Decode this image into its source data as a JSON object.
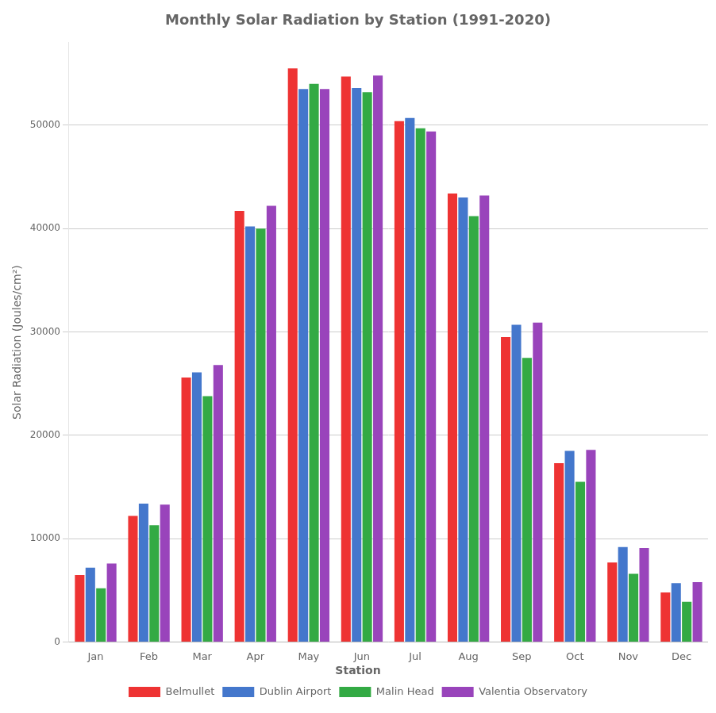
{
  "chart_data": {
    "type": "bar",
    "title": "Monthly Solar Radiation by Station (1991-2020)",
    "ylabel": "Solar Radiation (Joules/cm²)",
    "categories": [
      "Jan",
      "Feb",
      "Mar",
      "Apr",
      "May",
      "Jun",
      "Jul",
      "Aug",
      "Sep",
      "Oct",
      "Nov",
      "Dec"
    ],
    "series": [
      {
        "name": "Belmullet",
        "color": "#EE3333",
        "values": [
          6500,
          12200,
          25600,
          41700,
          55500,
          54700,
          50400,
          43400,
          29500,
          17300,
          7700,
          4800
        ]
      },
      {
        "name": "Dublin Airport",
        "color": "#4477CC",
        "values": [
          7200,
          13400,
          26100,
          40200,
          53500,
          53600,
          50700,
          43000,
          30700,
          18500,
          9200,
          5700
        ]
      },
      {
        "name": "Malin Head",
        "color": "#33AA44",
        "values": [
          5200,
          11300,
          23800,
          40000,
          54000,
          53200,
          49700,
          41200,
          27500,
          15500,
          6600,
          3900
        ]
      },
      {
        "name": "Valentia Observatory",
        "color": "#9944BB",
        "values": [
          7600,
          13300,
          26800,
          42200,
          53500,
          54800,
          49400,
          43200,
          30900,
          18600,
          9100,
          5800
        ]
      }
    ],
    "ylim": [
      0,
      58000
    ],
    "yticks": [
      0,
      10000,
      20000,
      30000,
      40000,
      50000
    ],
    "grid": true,
    "legend": "bottom",
    "legend_title": "Station"
  }
}
